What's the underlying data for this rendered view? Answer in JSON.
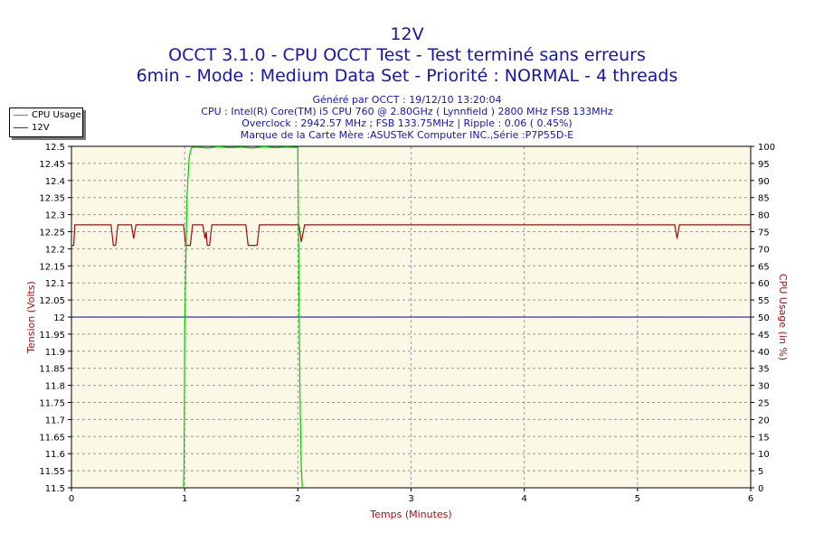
{
  "header": {
    "title": "12V",
    "subtitle1": "OCCT 3.1.0 - CPU OCCT Test - Test terminé sans erreurs",
    "subtitle2": "6min - Mode : Medium Data Set - Priorité : NORMAL - 4 threads",
    "info": [
      "Généré par OCCT : 19/12/10 13:20:04",
      "CPU : Intel(R) Core(TM) i5 CPU 760 @ 2.80GHz ( Lynnfield ) 2800 MHz FSB 133MHz",
      "Overclock : 2942.57 MHz ; FSB 133.75MHz | Ripple : 0.06 ( 0.45%)",
      "Marque de la Carte Mère :ASUSTeK Computer INC.,Série :P7P55D-E"
    ]
  },
  "legend": [
    {
      "name": "CPU Usage",
      "color": "#00d000"
    },
    {
      "name": "12V",
      "color": "#a01010"
    }
  ],
  "chart_data": {
    "type": "line",
    "xlabel": "Temps (Minutes)",
    "ylabel": "Tension (Volts)",
    "y2label": "CPU Usage (in %)",
    "xlim": [
      0,
      6
    ],
    "ylim": [
      11.5,
      12.5
    ],
    "y2lim": [
      0,
      100
    ],
    "x_ticks": [
      "0",
      "1",
      "2",
      "3",
      "4",
      "5",
      "6"
    ],
    "y_ticks": [
      "11.5",
      "11.55",
      "11.6",
      "11.65",
      "11.7",
      "11.75",
      "11.8",
      "11.85",
      "11.9",
      "11.95",
      "12",
      "12.05",
      "12.1",
      "12.15",
      "12.2",
      "12.25",
      "12.3",
      "12.35",
      "12.4",
      "12.45",
      "12.5"
    ],
    "y2_ticks": [
      "0",
      "5",
      "10",
      "15",
      "20",
      "25",
      "30",
      "35",
      "40",
      "45",
      "50",
      "55",
      "60",
      "65",
      "70",
      "75",
      "80",
      "85",
      "90",
      "95",
      "100"
    ],
    "reference_line": {
      "y": 12.0,
      "color": "#0000a0"
    },
    "grid": true,
    "legend_position": "top-left",
    "colors": {
      "plot_bg": "#fbf8e6",
      "axis_text": "#000000",
      "axis_label": "#a01010",
      "grid": "#9a9a9a"
    },
    "series": [
      {
        "name": "12V",
        "axis": "left",
        "color": "#a01010",
        "x": [
          0,
          0.02,
          0.03,
          0.35,
          0.37,
          0.39,
          0.41,
          0.53,
          0.55,
          0.57,
          0.99,
          1.01,
          1.05,
          1.07,
          1.16,
          1.18,
          1.19,
          1.2,
          1.22,
          1.24,
          1.25,
          1.54,
          1.56,
          1.64,
          1.66,
          2.01,
          2.03,
          2.06,
          5.33,
          5.35,
          5.37,
          6.0
        ],
        "y": [
          12.21,
          12.21,
          12.27,
          12.27,
          12.21,
          12.21,
          12.27,
          12.27,
          12.23,
          12.27,
          12.27,
          12.21,
          12.21,
          12.27,
          12.27,
          12.23,
          12.25,
          12.21,
          12.21,
          12.27,
          12.27,
          12.27,
          12.21,
          12.21,
          12.27,
          12.27,
          12.22,
          12.27,
          12.27,
          12.23,
          12.27,
          12.27
        ]
      },
      {
        "name": "CPU Usage",
        "axis": "right",
        "color": "#00d000",
        "x": [
          0.99,
          0.995,
          1.0,
          1.02,
          1.04,
          1.06,
          1.1,
          1.2,
          1.3,
          1.4,
          1.5,
          1.6,
          1.7,
          1.8,
          1.9,
          1.98,
          1.99,
          2.0,
          2.01,
          2.02,
          2.03,
          2.04
        ],
        "y": [
          0,
          6,
          46,
          85,
          97,
          99.6,
          99.8,
          99.5,
          99.9,
          99.6,
          99.8,
          99.5,
          99.9,
          99.6,
          99.8,
          99.7,
          99.7,
          99.7,
          55,
          25,
          6,
          0
        ]
      }
    ]
  }
}
